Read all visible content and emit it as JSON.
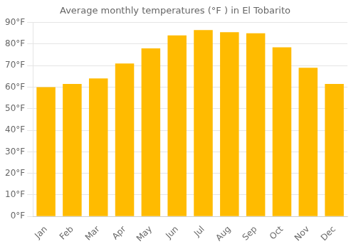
{
  "chart_data": {
    "type": "bar",
    "title": "Average monthly temperatures (°F ) in El Tobarito",
    "categories": [
      "Jan",
      "Feb",
      "Mar",
      "Apr",
      "May",
      "Jun",
      "Jul",
      "Aug",
      "Sep",
      "Oct",
      "Nov",
      "Dec"
    ],
    "values": [
      60,
      61.5,
      64,
      71,
      78,
      84,
      86.5,
      85.5,
      85,
      78.5,
      69,
      61.5
    ],
    "color": "#FFBB00",
    "ylim": [
      0,
      90
    ],
    "yticks": [
      {
        "value": 0,
        "label": "0°F"
      },
      {
        "value": 10,
        "label": "10°F"
      },
      {
        "value": 20,
        "label": "20°F"
      },
      {
        "value": 30,
        "label": "30°F"
      },
      {
        "value": 40,
        "label": "40°F"
      },
      {
        "value": 50,
        "label": "50°F"
      },
      {
        "value": 60,
        "label": "60°F"
      },
      {
        "value": 70,
        "label": "70°F"
      },
      {
        "value": 80,
        "label": "80°F"
      },
      {
        "value": 90,
        "label": "90°F"
      }
    ],
    "grid": true
  }
}
